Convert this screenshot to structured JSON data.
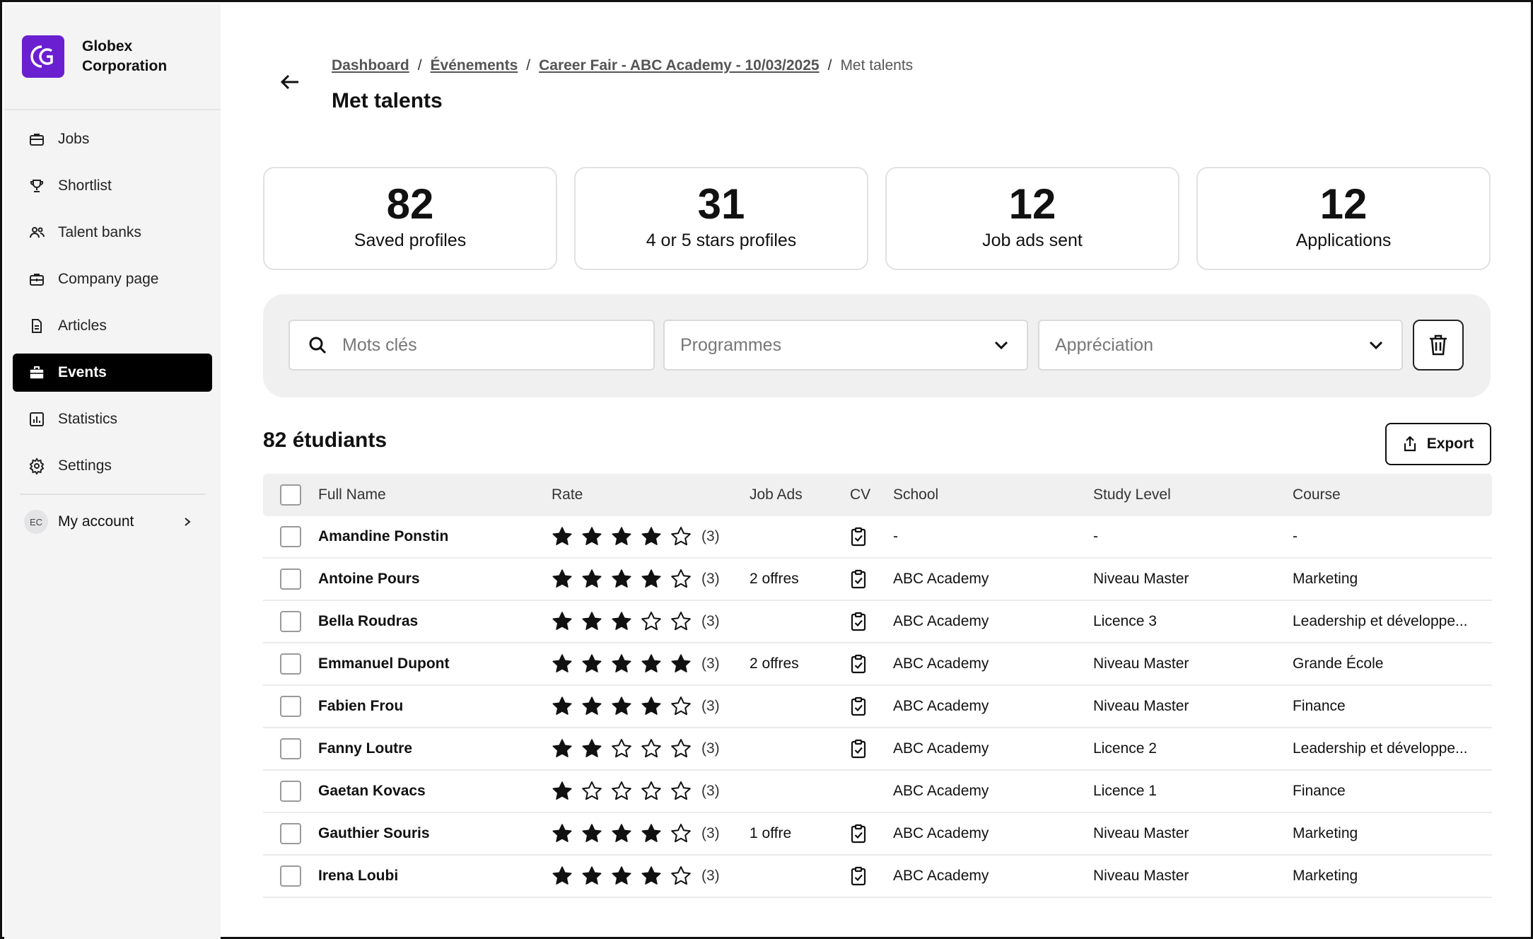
{
  "sidebar": {
    "brand": "Globex Corporation",
    "brand_line1": "Globex",
    "brand_line2": "Corporation",
    "items": [
      {
        "label": "Jobs",
        "icon": "briefcase-icon"
      },
      {
        "label": "Shortlist",
        "icon": "trophy-icon"
      },
      {
        "label": "Talent banks",
        "icon": "users-icon"
      },
      {
        "label": "Company page",
        "icon": "building-icon"
      },
      {
        "label": "Articles",
        "icon": "document-icon"
      },
      {
        "label": "Events",
        "icon": "briefcase-icon",
        "active": true
      },
      {
        "label": "Statistics",
        "icon": "chart-icon"
      },
      {
        "label": "Settings",
        "icon": "gear-icon"
      }
    ],
    "account": {
      "initials": "EC",
      "label": "My account"
    }
  },
  "header": {
    "breadcrumbs": [
      "Dashboard",
      "Événements",
      "Career Fair - ABC Academy - 10/03/2025",
      "Met talents"
    ],
    "title": "Met talents"
  },
  "stats": [
    {
      "value": "82",
      "label": "Saved profiles"
    },
    {
      "value": "31",
      "label": "4 or 5 stars profiles"
    },
    {
      "value": "12",
      "label": "Job ads sent"
    },
    {
      "value": "12",
      "label": "Applications"
    }
  ],
  "filters": {
    "search_placeholder": "Mots clés",
    "programmes_placeholder": "Programmes",
    "appreciation_placeholder": "Appréciation"
  },
  "list": {
    "count_label": "82 étudiants",
    "export_label": "Export",
    "columns": [
      "Full Name",
      "Rate",
      "Job Ads",
      "CV",
      "School",
      "Study Level",
      "Course"
    ],
    "rows": [
      {
        "name": "Amandine Ponstin",
        "rating": 4,
        "rate_count": "(3)",
        "job_ads": "",
        "cv": true,
        "school": "-",
        "level": "-",
        "course": "-"
      },
      {
        "name": "Antoine Pours",
        "rating": 4,
        "rate_count": "(3)",
        "job_ads": "2 offres",
        "cv": true,
        "school": "ABC Academy",
        "level": "Niveau Master",
        "course": "Marketing"
      },
      {
        "name": "Bella Roudras",
        "rating": 3,
        "rate_count": "(3)",
        "job_ads": "",
        "cv": true,
        "school": "ABC Academy",
        "level": "Licence 3",
        "course": "Leadership et développe..."
      },
      {
        "name": "Emmanuel Dupont",
        "rating": 5,
        "rate_count": "(3)",
        "job_ads": "2 offres",
        "cv": true,
        "school": "ABC Academy",
        "level": "Niveau Master",
        "course": "Grande École"
      },
      {
        "name": "Fabien Frou",
        "rating": 4,
        "rate_count": "(3)",
        "job_ads": "",
        "cv": true,
        "school": "ABC Academy",
        "level": "Niveau Master",
        "course": "Finance"
      },
      {
        "name": "Fanny Loutre",
        "rating": 2,
        "rate_count": "(3)",
        "job_ads": "",
        "cv": true,
        "school": "ABC Academy",
        "level": "Licence 2",
        "course": "Leadership et développe..."
      },
      {
        "name": "Gaetan Kovacs",
        "rating": 1,
        "rate_count": "(3)",
        "job_ads": "",
        "cv": false,
        "school": "ABC Academy",
        "level": "Licence 1",
        "course": "Finance"
      },
      {
        "name": "Gauthier Souris",
        "rating": 4,
        "rate_count": "(3)",
        "job_ads": "1 offre",
        "cv": true,
        "school": "ABC Academy",
        "level": "Niveau Master",
        "course": "Marketing"
      },
      {
        "name": "Irena Loubi",
        "rating": 4,
        "rate_count": "(3)",
        "job_ads": "",
        "cv": true,
        "school": "ABC Academy",
        "level": "Niveau Master",
        "course": "Marketing"
      }
    ]
  },
  "colors": {
    "brand": "#6a1fd0",
    "active_nav": "#000000"
  }
}
